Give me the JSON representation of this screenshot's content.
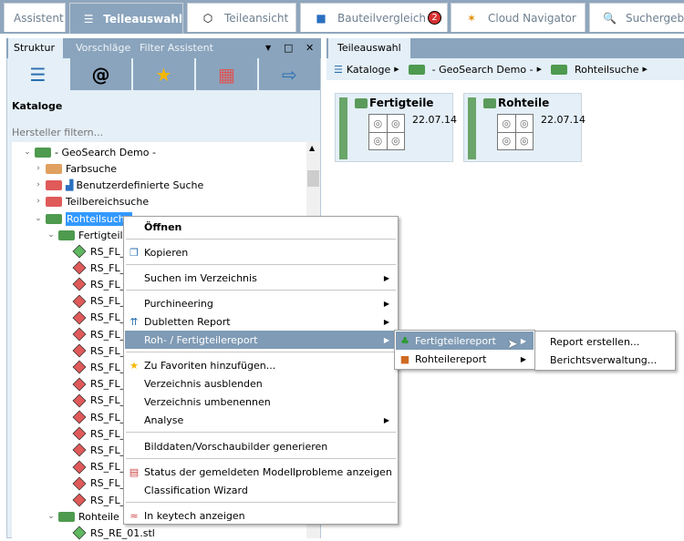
{
  "top_tabs": [
    {
      "label": "Assistent",
      "icon": ""
    },
    {
      "label": "Teileauswahl",
      "icon": "catalog-stack-icon",
      "active": true
    },
    {
      "label": "Teileansicht",
      "icon": "cube-icon"
    },
    {
      "label": "Bauteilvergleich",
      "icon": "compare-icon",
      "badge": "2"
    },
    {
      "label": "Cloud Navigator",
      "icon": "network-icon"
    },
    {
      "label": "Suchergebn",
      "icon": "search-icon"
    }
  ],
  "left": {
    "tabs": [
      "Struktur",
      "Vorschläge",
      "Filter Assistent"
    ],
    "icons": [
      "catalog-stack-icon",
      "at-icon",
      "star-icon",
      "calendar-icon",
      "export-icon"
    ],
    "section_title": "Kataloge",
    "filter_placeholder": "Hersteller filtern...",
    "tree": {
      "root": "- GeoSearch Demo -",
      "items": [
        "Farbsuche",
        "Benutzerdefinierte Suche",
        "Teilbereichsuche",
        "Rohteilsuche"
      ],
      "fertigteile": "Fertigteile",
      "fl_items": [
        "RS_FL_",
        "RS_FL_",
        "RS_FL_",
        "RS_FL_",
        "RS_FL_",
        "RS_FL_",
        "RS_FL_",
        "RS_FL_",
        "RS_FL_",
        "RS_FL_",
        "RS_FL_",
        "RS_FL_",
        "RS_FL_",
        "RS_FL_",
        "RS_FL_",
        "RS_FL_"
      ],
      "rohteile": "Rohteile",
      "re_item": "RS_RE_01.stl"
    }
  },
  "right": {
    "tab": "Teileauswahl",
    "breadcrumb": [
      "Kataloge",
      "- GeoSearch Demo -",
      "Rohteilsuche"
    ],
    "cards": [
      {
        "title": "Fertigteile",
        "date": "22.07.14"
      },
      {
        "title": "Rohteile",
        "date": "22.07.14"
      }
    ]
  },
  "context_menu": {
    "items": [
      "Öffnen",
      "Kopieren",
      "Suchen im Verzeichnis",
      "Purchineering",
      "Dubletten Report",
      "Roh- / Fertigteilereport",
      "Zu Favoriten hinzufügen...",
      "Verzeichnis ausblenden",
      "Verzeichnis umbenennen",
      "Analyse",
      "Bilddaten/Vorschaubilder generieren",
      "Status der gemeldeten Modellprobleme anzeigen",
      "Classification Wizard",
      "In keytech anzeigen"
    ],
    "submenu": [
      "Fertigteilereport",
      "Rohteilereport"
    ],
    "submenu2": [
      "Report erstellen...",
      "Berichtsverwaltung..."
    ]
  },
  "colors": {
    "accent": "#8aa4bd",
    "highlight": "#7f9bb5",
    "selection": "#3399ff"
  }
}
